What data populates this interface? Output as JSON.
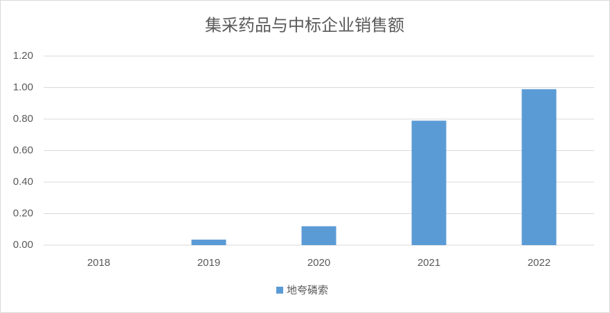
{
  "chart_data": {
    "type": "bar",
    "title": "集采药品与中标企业销售额",
    "categories": [
      "2018",
      "2019",
      "2020",
      "2021",
      "2022"
    ],
    "series": [
      {
        "name": "地夸磷索",
        "color": "#5b9bd5",
        "values": [
          0,
          0.035,
          0.12,
          0.79,
          0.99
        ]
      }
    ],
    "ylim": [
      0,
      1.2
    ],
    "yticks": [
      {
        "value": 0,
        "label": "0.00"
      },
      {
        "value": 0.2,
        "label": "0.20"
      },
      {
        "value": 0.4,
        "label": "0.40"
      },
      {
        "value": 0.6,
        "label": "0.60"
      },
      {
        "value": 0.8,
        "label": "0.80"
      },
      {
        "value": 1,
        "label": "1.00"
      },
      {
        "value": 1.2,
        "label": "1.20"
      }
    ],
    "grid": true,
    "legend": "bottom"
  }
}
